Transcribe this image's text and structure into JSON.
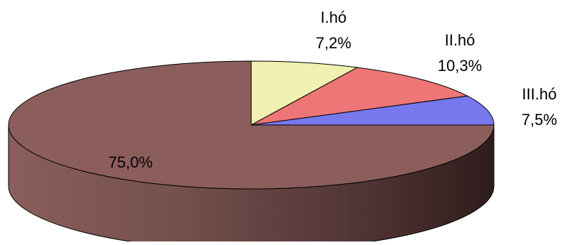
{
  "chart_data": {
    "type": "pie",
    "style": "3d",
    "title": "",
    "slices": [
      {
        "label": "I.hó",
        "value": 7.2,
        "value_label": "7,2%",
        "color": "#F0F0B0"
      },
      {
        "label": "II.hó",
        "value": 10.3,
        "value_label": "10,3%",
        "color": "#EF7676"
      },
      {
        "label": "III.hó",
        "value": 7.5,
        "value_label": "7,5%",
        "color": "#7878EE"
      },
      {
        "label": "",
        "value": 75.0,
        "value_label": "75,0%",
        "color": "#8B5E5C"
      }
    ]
  }
}
